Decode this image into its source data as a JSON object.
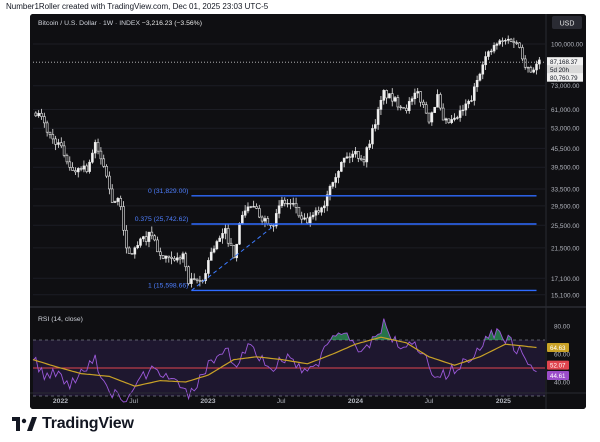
{
  "header": {
    "attribution": "Number1Roller created with TradingView.com, Dec 01, 2025 23:03 UTC-5"
  },
  "footer": {
    "brand": "TradingView",
    "logo_icon": "tradingview-logo-icon"
  },
  "chart_data": [
    {
      "type": "candlestick",
      "title": "Bitcoin / U.S. Dollar · 1W · INDEX",
      "change_text": "−3,216.23 (−3.56%)",
      "currency_label": "USD",
      "y_scale": "log",
      "ylim": [
        14300,
        118000
      ],
      "x_range": [
        "2021-10-25",
        "2025-04-14"
      ],
      "y_ticks": [
        "100,000.00",
        "73,000.00",
        "61,000.00",
        "53,000.00",
        "45,500.00",
        "39,500.00",
        "33,500.00",
        "29,500.00",
        "25,500.00",
        "21,500.00",
        "17,100.00",
        "15,100.00"
      ],
      "x_ticks": [
        "2022",
        "Jul",
        "2023",
        "Jul",
        "2024",
        "Jul",
        "2025"
      ],
      "price_labels": [
        {
          "text": "87,168.37",
          "value": 87168.37,
          "style": "light"
        },
        {
          "text": "5d 20h",
          "value": 87168.37,
          "style": "light"
        },
        {
          "text": "80,760.79",
          "value": 80760.79,
          "style": "light"
        }
      ],
      "current_price": 87168.37,
      "fib_levels": [
        {
          "label": "0 (31,829.00)",
          "value": 31829.0
        },
        {
          "label": "0.375 (25,742.62)",
          "value": 25742.62
        },
        {
          "label": "1 (15,598.66)",
          "value": 15598.66
        }
      ],
      "trendline": {
        "from": [
          "2022-11-21",
          15598.66
        ],
        "to": [
          "2023-06-19",
          25742.62
        ],
        "style": "dashed"
      },
      "candle_anchors": [
        [
          "2021-11-01",
          60000
        ],
        [
          "2021-11-15",
          57000
        ],
        [
          "2021-12-06",
          50000
        ],
        [
          "2021-12-27",
          47000
        ],
        [
          "2022-01-17",
          42000
        ],
        [
          "2022-01-31",
          38000
        ],
        [
          "2022-02-21",
          40000
        ],
        [
          "2022-03-07",
          39000
        ],
        [
          "2022-03-28",
          46500
        ],
        [
          "2022-04-18",
          40000
        ],
        [
          "2022-05-09",
          31000
        ],
        [
          "2022-05-30",
          30000
        ],
        [
          "2022-06-13",
          21000
        ],
        [
          "2022-06-20",
          20300
        ],
        [
          "2022-07-18",
          22500
        ],
        [
          "2022-08-15",
          24000
        ],
        [
          "2022-09-05",
          20000
        ],
        [
          "2022-10-10",
          19300
        ],
        [
          "2022-10-31",
          20500
        ],
        [
          "2022-11-14",
          16500
        ],
        [
          "2022-12-19",
          16800
        ],
        [
          "2023-01-09",
          21000
        ],
        [
          "2023-02-13",
          24300
        ],
        [
          "2023-03-06",
          20400
        ],
        [
          "2023-03-27",
          28000
        ],
        [
          "2023-04-17",
          29500
        ],
        [
          "2023-05-15",
          27000
        ],
        [
          "2023-06-12",
          26000
        ],
        [
          "2023-07-03",
          30500
        ],
        [
          "2023-08-07",
          29200
        ],
        [
          "2023-08-21",
          26100
        ],
        [
          "2023-09-11",
          26500
        ],
        [
          "2023-10-16",
          30000
        ],
        [
          "2023-10-30",
          35000
        ],
        [
          "2023-12-04",
          42000
        ],
        [
          "2024-01-01",
          44000
        ],
        [
          "2024-01-22",
          41800
        ],
        [
          "2024-02-12",
          52000
        ],
        [
          "2024-03-11",
          69000
        ],
        [
          "2024-04-15",
          64000
        ],
        [
          "2024-05-06",
          62000
        ],
        [
          "2024-06-03",
          69000
        ],
        [
          "2024-07-01",
          57000
        ],
        [
          "2024-07-22",
          67000
        ],
        [
          "2024-08-05",
          55000
        ],
        [
          "2024-09-02",
          56000
        ],
        [
          "2024-10-14",
          66000
        ],
        [
          "2024-11-11",
          88000
        ],
        [
          "2024-12-16",
          100000
        ],
        [
          "2025-01-20",
          104000
        ],
        [
          "2025-02-10",
          98000
        ],
        [
          "2025-02-24",
          86000
        ],
        [
          "2025-03-10",
          82000
        ],
        [
          "2025-03-31",
          87168
        ]
      ]
    },
    {
      "type": "line",
      "title": "RSI (14, close)",
      "ylim": [
        35,
        90
      ],
      "y_ticks": [
        "80.00",
        "60.00",
        "40.00"
      ],
      "levels": {
        "upper": 70,
        "middle": 50,
        "lower": 30
      },
      "value_labels": [
        {
          "text": "64.63",
          "value": 64.63,
          "color": "#c9a227"
        },
        {
          "text": "52.07",
          "value": 52.07,
          "color": "#e0454f"
        },
        {
          "text": "44.61",
          "value": 44.61,
          "color": "#9b4dca"
        }
      ],
      "series": [
        {
          "role": "rsi",
          "color": "#9b59d9",
          "anchors": [
            [
              "2021-10-25",
              60
            ],
            [
              "2021-11-22",
              43
            ],
            [
              "2021-12-20",
              46
            ],
            [
              "2022-01-24",
              38
            ],
            [
              "2022-03-28",
              55
            ],
            [
              "2022-05-09",
              32
            ],
            [
              "2022-06-20",
              27
            ],
            [
              "2022-07-25",
              44
            ],
            [
              "2022-08-15",
              47
            ],
            [
              "2022-10-17",
              40
            ],
            [
              "2022-11-14",
              30
            ],
            [
              "2023-01-16",
              57
            ],
            [
              "2023-02-20",
              62
            ],
            [
              "2023-03-13",
              50
            ],
            [
              "2023-04-10",
              66
            ],
            [
              "2023-06-12",
              48
            ],
            [
              "2023-07-03",
              59
            ],
            [
              "2023-09-04",
              44
            ],
            [
              "2023-10-23",
              64
            ],
            [
              "2023-12-04",
              78
            ],
            [
              "2024-01-22",
              60
            ],
            [
              "2024-03-11",
              82
            ],
            [
              "2024-04-22",
              63
            ],
            [
              "2024-06-03",
              66
            ],
            [
              "2024-07-08",
              48
            ],
            [
              "2024-08-05",
              45
            ],
            [
              "2024-09-16",
              52
            ],
            [
              "2024-10-28",
              60
            ],
            [
              "2024-11-18",
              74
            ],
            [
              "2024-12-16",
              76
            ],
            [
              "2025-01-20",
              69
            ],
            [
              "2025-02-24",
              56
            ],
            [
              "2025-03-24",
              44.61
            ]
          ]
        },
        {
          "role": "rsi-ma",
          "color": "#c9a227",
          "anchors": [
            [
              "2021-10-25",
              56
            ],
            [
              "2021-12-20",
              51
            ],
            [
              "2022-02-21",
              46
            ],
            [
              "2022-05-02",
              44
            ],
            [
              "2022-07-04",
              37
            ],
            [
              "2022-09-05",
              41
            ],
            [
              "2022-11-07",
              40
            ],
            [
              "2023-01-02",
              45
            ],
            [
              "2023-03-06",
              56
            ],
            [
              "2023-05-01",
              58
            ],
            [
              "2023-07-03",
              56
            ],
            [
              "2023-09-04",
              53
            ],
            [
              "2023-11-06",
              60
            ],
            [
              "2024-01-01",
              67
            ],
            [
              "2024-03-04",
              72
            ],
            [
              "2024-05-06",
              68
            ],
            [
              "2024-07-01",
              58
            ],
            [
              "2024-09-02",
              52
            ],
            [
              "2024-11-04",
              58
            ],
            [
              "2025-01-06",
              67
            ],
            [
              "2025-02-10",
              66
            ],
            [
              "2025-03-24",
              64.63
            ]
          ]
        }
      ]
    }
  ]
}
